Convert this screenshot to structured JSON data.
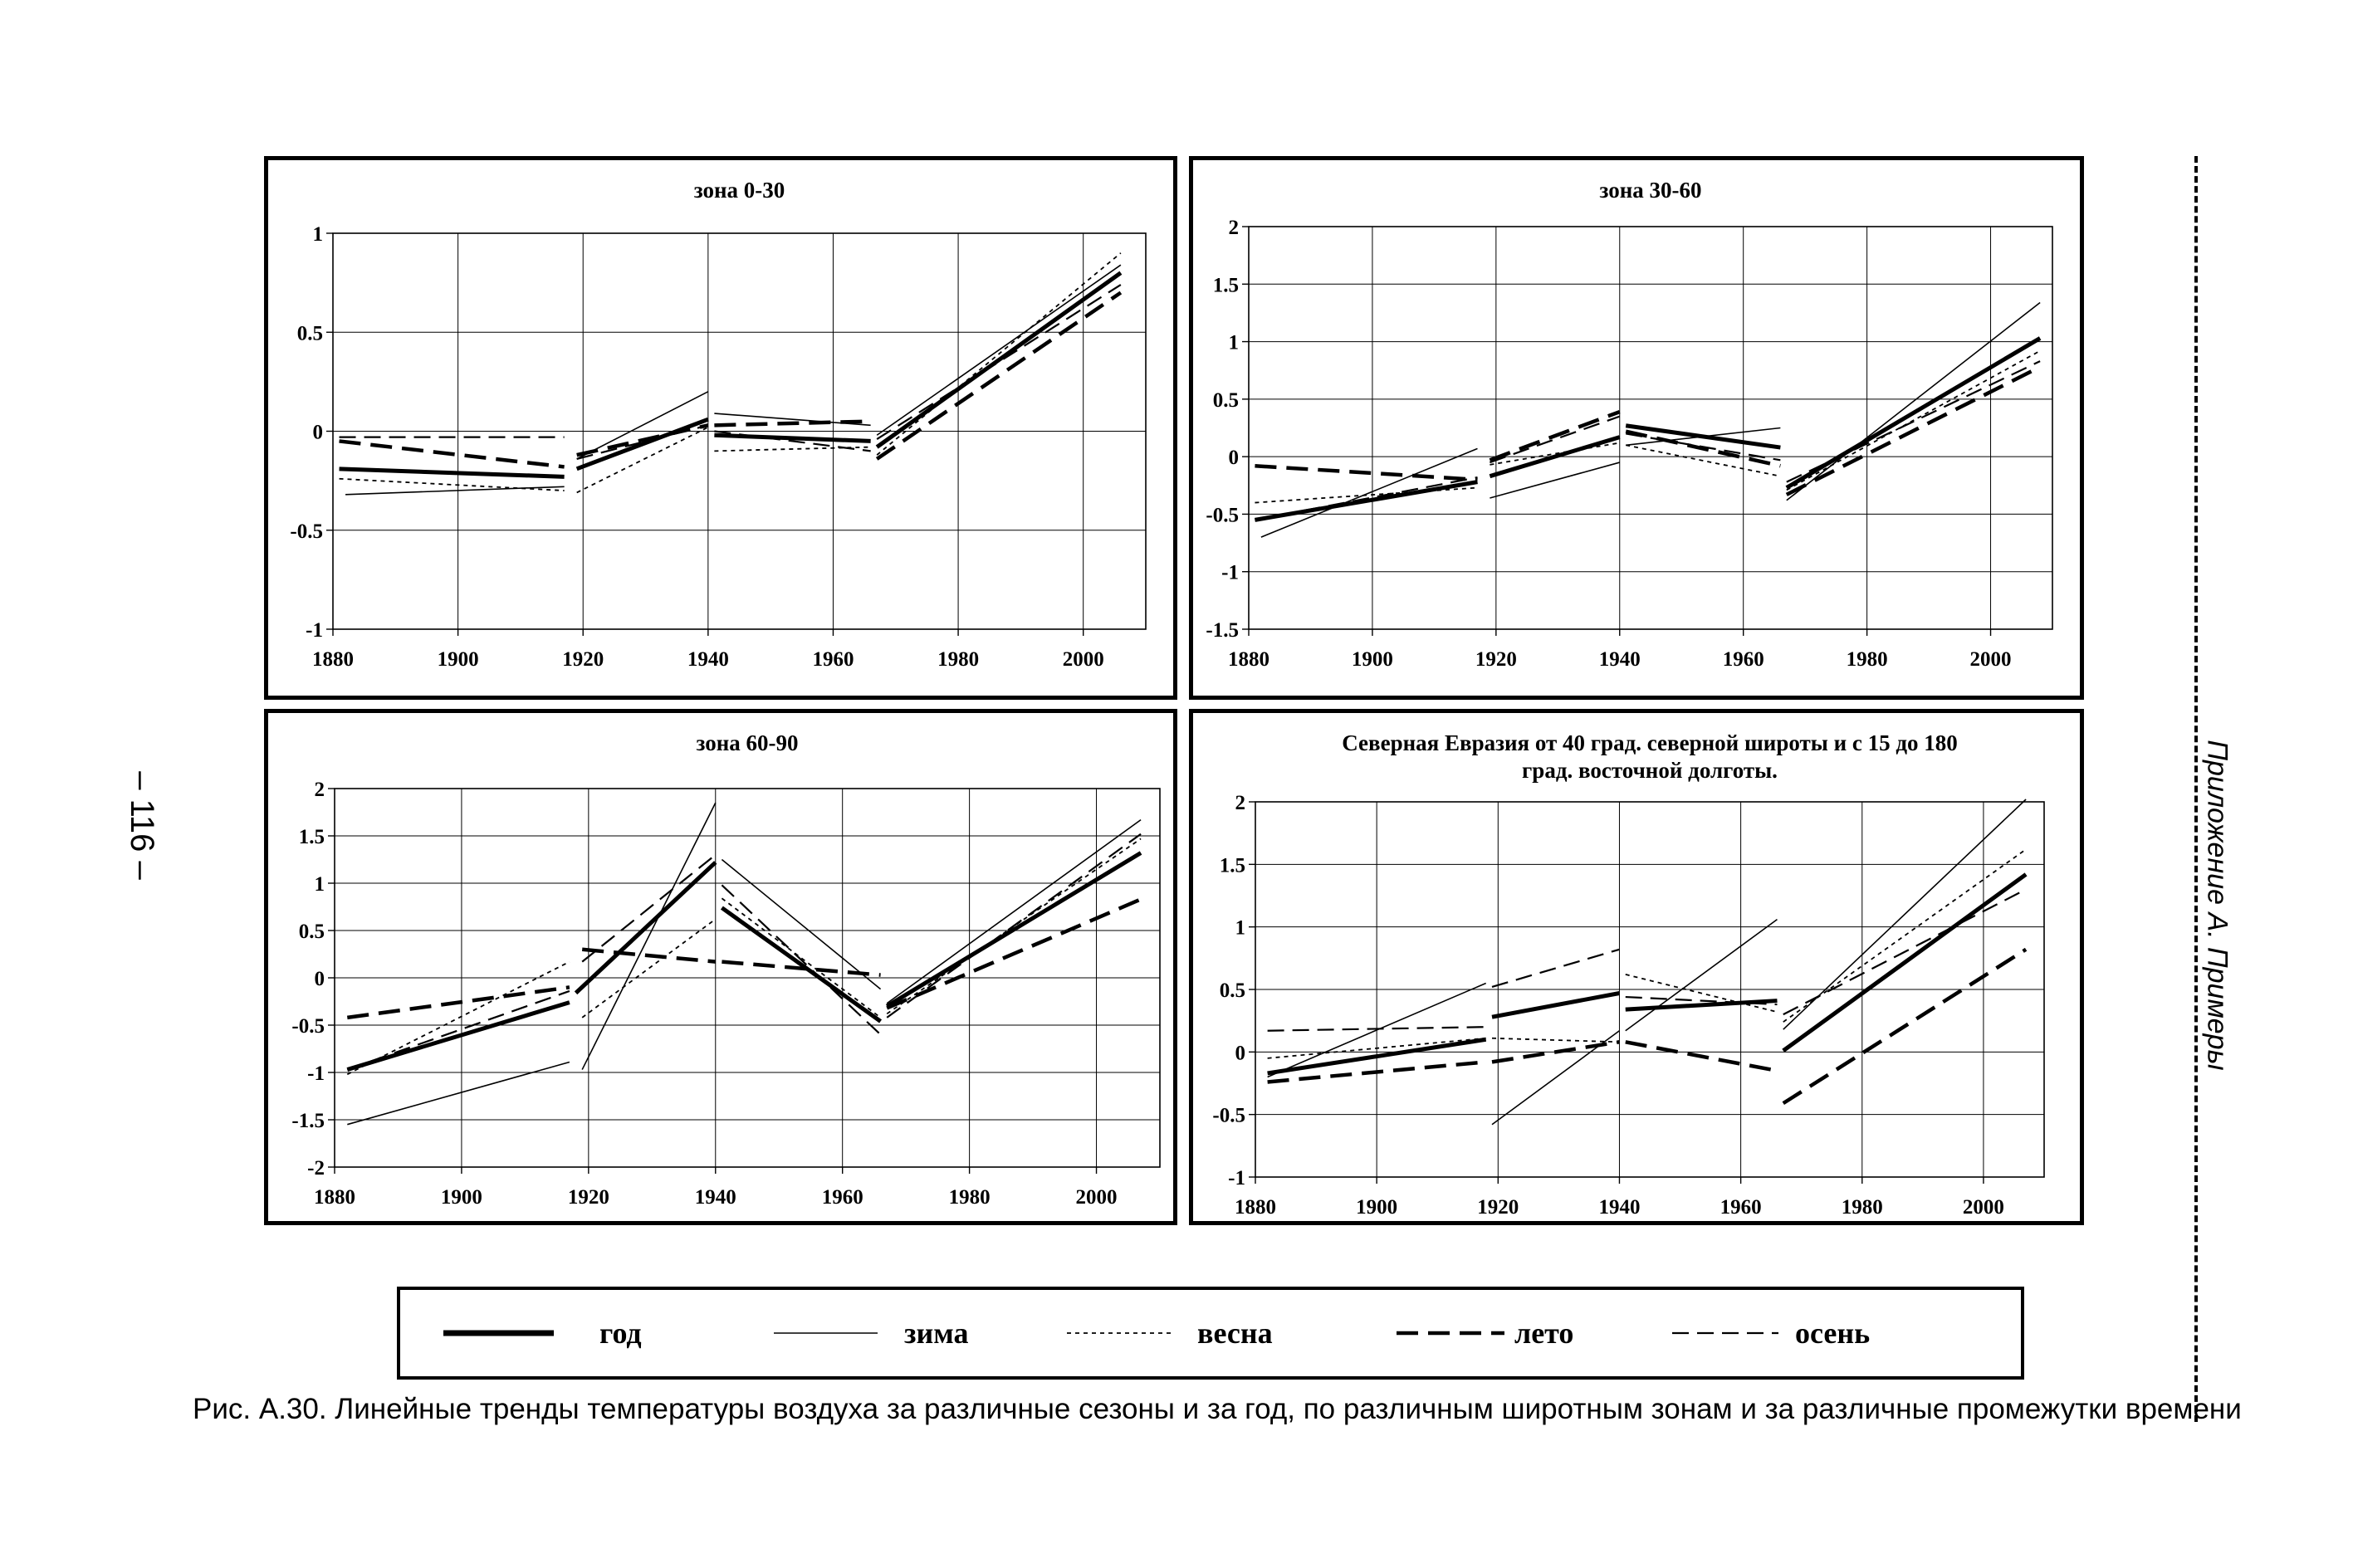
{
  "page": {
    "number": "– 116 –",
    "side_label": "Приложение А. Примеры",
    "caption": "Рис. А.30. Линейные тренды температуры воздуха за различные сезоны и за год, по различным широтным зонам и за различные промежутки времени"
  },
  "legend": [
    {
      "key": "year",
      "label": "год"
    },
    {
      "key": "winter",
      "label": "зима"
    },
    {
      "key": "spring",
      "label": "весна"
    },
    {
      "key": "summer",
      "label": "лето"
    },
    {
      "key": "autumn",
      "label": "осень"
    }
  ],
  "chart_data": [
    {
      "type": "line",
      "title": "зона 0-30",
      "xlim": [
        1880,
        2010
      ],
      "ylim": [
        -1,
        1
      ],
      "x_ticks": [
        1880,
        1900,
        1920,
        1940,
        1960,
        1980,
        2000
      ],
      "y_ticks": [
        -1,
        -0.5,
        0,
        0.5,
        1
      ],
      "y_tick_labels": [
        "-1",
        "-0.5",
        "0",
        "0.5",
        "1"
      ],
      "grid": true,
      "series": [
        {
          "name": "год",
          "segments": [
            [
              [
                1881,
                -0.19
              ],
              [
                1917,
                -0.23
              ]
            ],
            [
              [
                1919,
                -0.19
              ],
              [
                1940,
                0.06
              ]
            ],
            [
              [
                1941,
                -0.02
              ],
              [
                1966,
                -0.05
              ]
            ],
            [
              [
                1967,
                -0.08
              ],
              [
                2006,
                0.8
              ]
            ]
          ]
        },
        {
          "name": "зима",
          "segments": [
            [
              [
                1882,
                -0.32
              ],
              [
                1917,
                -0.28
              ]
            ],
            [
              [
                1919,
                -0.14
              ],
              [
                1940,
                0.2
              ]
            ],
            [
              [
                1941,
                0.09
              ],
              [
                1966,
                0.03
              ]
            ],
            [
              [
                1967,
                -0.02
              ],
              [
                2006,
                0.84
              ]
            ]
          ]
        },
        {
          "name": "весна",
          "segments": [
            [
              [
                1881,
                -0.24
              ],
              [
                1917,
                -0.3
              ]
            ],
            [
              [
                1919,
                -0.31
              ],
              [
                1940,
                0.02
              ]
            ],
            [
              [
                1941,
                -0.1
              ],
              [
                1966,
                -0.08
              ]
            ],
            [
              [
                1967,
                -0.12
              ],
              [
                2006,
                0.9
              ]
            ]
          ]
        },
        {
          "name": "лето",
          "segments": [
            [
              [
                1881,
                -0.05
              ],
              [
                1917,
                -0.18
              ]
            ],
            [
              [
                1919,
                -0.12
              ],
              [
                1940,
                0.03
              ]
            ],
            [
              [
                1941,
                0.03
              ],
              [
                1966,
                0.05
              ]
            ],
            [
              [
                1967,
                -0.14
              ],
              [
                2006,
                0.7
              ]
            ]
          ]
        },
        {
          "name": "осень",
          "segments": [
            [
              [
                1881,
                -0.03
              ],
              [
                1917,
                -0.03
              ]
            ],
            [
              [
                1919,
                -0.14
              ],
              [
                1940,
                0.03
              ]
            ],
            [
              [
                1941,
                0.0
              ],
              [
                1966,
                -0.1
              ]
            ],
            [
              [
                1967,
                -0.04
              ],
              [
                2006,
                0.74
              ]
            ]
          ]
        }
      ]
    },
    {
      "type": "line",
      "title": "зона 30-60",
      "xlim": [
        1880,
        2010
      ],
      "ylim": [
        -1.5,
        2
      ],
      "x_ticks": [
        1880,
        1900,
        1920,
        1940,
        1960,
        1980,
        2000
      ],
      "y_ticks": [
        -1.5,
        -1,
        -0.5,
        0,
        0.5,
        1,
        1.5,
        2
      ],
      "y_tick_labels": [
        "-1.5",
        "-1",
        "-0.5",
        "0",
        "0.5",
        "1",
        "1.5",
        "2"
      ],
      "grid": true,
      "series": [
        {
          "name": "год",
          "segments": [
            [
              [
                1881,
                -0.55
              ],
              [
                1917,
                -0.22
              ]
            ],
            [
              [
                1919,
                -0.17
              ],
              [
                1940,
                0.17
              ]
            ],
            [
              [
                1941,
                0.27
              ],
              [
                1966,
                0.08
              ]
            ],
            [
              [
                1967,
                -0.27
              ],
              [
                2008,
                1.03
              ]
            ]
          ]
        },
        {
          "name": "зима",
          "segments": [
            [
              [
                1882,
                -0.7
              ],
              [
                1917,
                0.07
              ]
            ],
            [
              [
                1919,
                -0.36
              ],
              [
                1940,
                -0.05
              ]
            ],
            [
              [
                1941,
                0.1
              ],
              [
                1966,
                0.25
              ]
            ],
            [
              [
                1967,
                -0.38
              ],
              [
                2008,
                1.34
              ]
            ]
          ]
        },
        {
          "name": "весна",
          "segments": [
            [
              [
                1881,
                -0.4
              ],
              [
                1917,
                -0.27
              ]
            ],
            [
              [
                1919,
                -0.07
              ],
              [
                1940,
                0.12
              ]
            ],
            [
              [
                1941,
                0.1
              ],
              [
                1966,
                -0.17
              ]
            ],
            [
              [
                1967,
                -0.29
              ],
              [
                2008,
                0.92
              ]
            ]
          ]
        },
        {
          "name": "лето",
          "segments": [
            [
              [
                1881,
                -0.08
              ],
              [
                1917,
                -0.2
              ]
            ],
            [
              [
                1919,
                -0.03
              ],
              [
                1940,
                0.39
              ]
            ],
            [
              [
                1941,
                0.22
              ],
              [
                1966,
                -0.08
              ]
            ],
            [
              [
                1967,
                -0.33
              ],
              [
                2008,
                0.78
              ]
            ]
          ]
        },
        {
          "name": "осень",
          "segments": [
            [
              [
                1881,
                -0.55
              ],
              [
                1917,
                -0.18
              ]
            ],
            [
              [
                1919,
                -0.05
              ],
              [
                1940,
                0.35
              ]
            ],
            [
              [
                1941,
                0.2
              ],
              [
                1966,
                -0.03
              ]
            ],
            [
              [
                1967,
                -0.22
              ],
              [
                2008,
                0.83
              ]
            ]
          ]
        }
      ]
    },
    {
      "type": "line",
      "title": "зона 60-90",
      "xlim": [
        1880,
        2010
      ],
      "ylim": [
        -2,
        2
      ],
      "x_ticks": [
        1880,
        1900,
        1920,
        1940,
        1960,
        1980,
        2000
      ],
      "y_ticks": [
        -2,
        -1.5,
        -1,
        -0.5,
        0,
        0.5,
        1,
        1.5,
        2
      ],
      "y_tick_labels": [
        "-2",
        "-1.5",
        "-1",
        "-0.5",
        "0",
        "0.5",
        "1",
        "1.5",
        "2"
      ],
      "grid": true,
      "series": [
        {
          "name": "год",
          "segments": [
            [
              [
                1882,
                -0.97
              ],
              [
                1917,
                -0.26
              ]
            ],
            [
              [
                1918,
                -0.16
              ],
              [
                1940,
                1.22
              ]
            ],
            [
              [
                1941,
                0.74
              ],
              [
                1966,
                -0.46
              ]
            ],
            [
              [
                1967,
                -0.3
              ],
              [
                2007,
                1.32
              ]
            ]
          ]
        },
        {
          "name": "зима",
          "segments": [
            [
              [
                1882,
                -1.55
              ],
              [
                1917,
                -0.89
              ]
            ],
            [
              [
                1919,
                -0.97
              ],
              [
                1940,
                1.85
              ]
            ],
            [
              [
                1941,
                1.25
              ],
              [
                1966,
                -0.12
              ]
            ],
            [
              [
                1967,
                -0.27
              ],
              [
                2007,
                1.67
              ]
            ]
          ]
        },
        {
          "name": "весна",
          "segments": [
            [
              [
                1882,
                -1.02
              ],
              [
                1917,
                0.17
              ]
            ],
            [
              [
                1919,
                -0.42
              ],
              [
                1940,
                0.62
              ]
            ],
            [
              [
                1941,
                0.84
              ],
              [
                1966,
                -0.42
              ]
            ],
            [
              [
                1967,
                -0.38
              ],
              [
                2007,
                1.47
              ]
            ]
          ]
        },
        {
          "name": "лето",
          "segments": [
            [
              [
                1882,
                -0.42
              ],
              [
                1917,
                -0.1
              ]
            ],
            [
              [
                1919,
                0.3
              ],
              [
                1940,
                0.17
              ]
            ],
            [
              [
                1941,
                0.17
              ],
              [
                1966,
                0.03
              ]
            ],
            [
              [
                1967,
                -0.32
              ],
              [
                2007,
                0.83
              ]
            ]
          ]
        },
        {
          "name": "осень",
          "segments": [
            [
              [
                1882,
                -0.97
              ],
              [
                1917,
                -0.14
              ]
            ],
            [
              [
                1919,
                0.17
              ],
              [
                1940,
                1.3
              ]
            ],
            [
              [
                1941,
                0.98
              ],
              [
                1966,
                -0.6
              ]
            ],
            [
              [
                1967,
                -0.42
              ],
              [
                2007,
                1.52
              ]
            ]
          ]
        }
      ]
    },
    {
      "type": "line",
      "title": "Северная Евразия от 40 град. северной широты и с 15 до 180",
      "title_line2": "град. восточной долготы.",
      "xlim": [
        1880,
        2010
      ],
      "ylim": [
        -1,
        2
      ],
      "x_ticks": [
        1880,
        1900,
        1920,
        1940,
        1960,
        1980,
        2000
      ],
      "y_ticks": [
        -1,
        -0.5,
        0,
        0.5,
        1,
        1.5,
        2
      ],
      "y_tick_labels": [
        "-1",
        "-0.5",
        "0",
        "0.5",
        "1",
        "1.5",
        "2"
      ],
      "grid": true,
      "series": [
        {
          "name": "год",
          "segments": [
            [
              [
                1882,
                -0.17
              ],
              [
                1918,
                0.1
              ]
            ],
            [
              [
                1919,
                0.28
              ],
              [
                1940,
                0.47
              ]
            ],
            [
              [
                1941,
                0.34
              ],
              [
                1966,
                0.41
              ]
            ],
            [
              [
                1967,
                0.01
              ],
              [
                2007,
                1.42
              ]
            ]
          ]
        },
        {
          "name": "зима",
          "segments": [
            [
              [
                1882,
                -0.2
              ],
              [
                1918,
                0.55
              ]
            ],
            [
              [
                1919,
                -0.58
              ],
              [
                1940,
                0.17
              ]
            ],
            [
              [
                1941,
                0.17
              ],
              [
                1966,
                1.06
              ]
            ],
            [
              [
                1967,
                0.18
              ],
              [
                2007,
                2.02
              ]
            ]
          ]
        },
        {
          "name": "весна",
          "segments": [
            [
              [
                1882,
                -0.05
              ],
              [
                1918,
                0.11
              ]
            ],
            [
              [
                1919,
                0.11
              ],
              [
                1940,
                0.08
              ]
            ],
            [
              [
                1941,
                0.62
              ],
              [
                1966,
                0.32
              ]
            ],
            [
              [
                1967,
                0.24
              ],
              [
                2007,
                1.62
              ]
            ]
          ]
        },
        {
          "name": "лето",
          "segments": [
            [
              [
                1882,
                -0.24
              ],
              [
                1918,
                -0.08
              ]
            ],
            [
              [
                1919,
                -0.08
              ],
              [
                1940,
                0.08
              ]
            ],
            [
              [
                1941,
                0.08
              ],
              [
                1966,
                -0.15
              ]
            ],
            [
              [
                1967,
                -0.41
              ],
              [
                2007,
                0.82
              ]
            ]
          ]
        },
        {
          "name": "осень",
          "segments": [
            [
              [
                1882,
                0.17
              ],
              [
                1918,
                0.2
              ]
            ],
            [
              [
                1919,
                0.52
              ],
              [
                1940,
                0.82
              ]
            ],
            [
              [
                1941,
                0.44
              ],
              [
                1966,
                0.38
              ]
            ],
            [
              [
                1967,
                0.3
              ],
              [
                2007,
                1.3
              ]
            ]
          ]
        }
      ]
    }
  ]
}
